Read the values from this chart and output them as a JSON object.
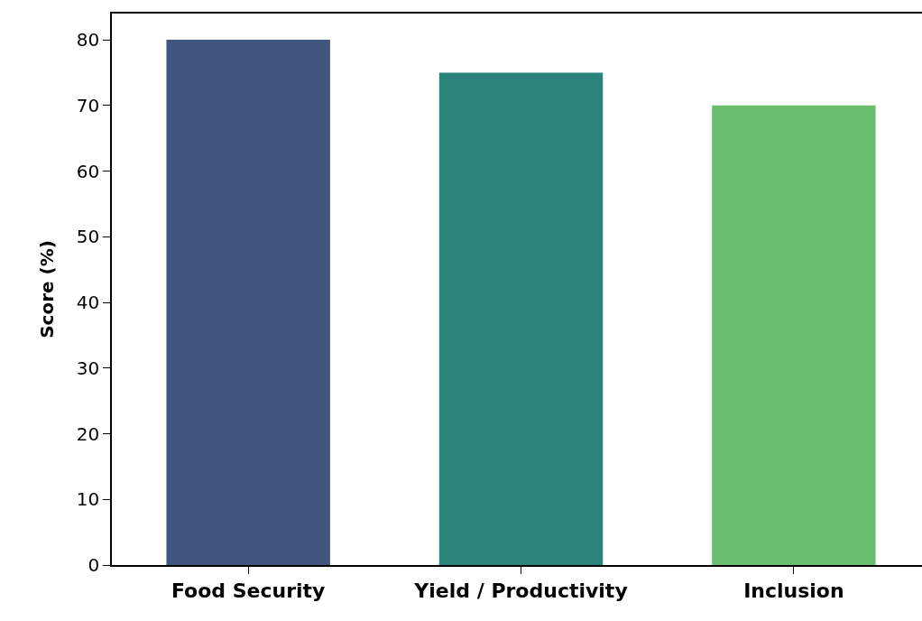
{
  "chart_data": {
    "type": "bar",
    "ylabel": "Score (%)",
    "categories": [
      "Food Security",
      "Yield / Productivity",
      "Inclusion"
    ],
    "values": [
      80,
      75,
      70
    ],
    "colors": [
      "#42557e",
      "#2a847c",
      "#6abf6e"
    ],
    "ylim": [
      0,
      84
    ],
    "yticks": [
      0,
      10,
      20,
      30,
      40,
      50,
      60,
      70,
      80
    ],
    "grid": false
  }
}
